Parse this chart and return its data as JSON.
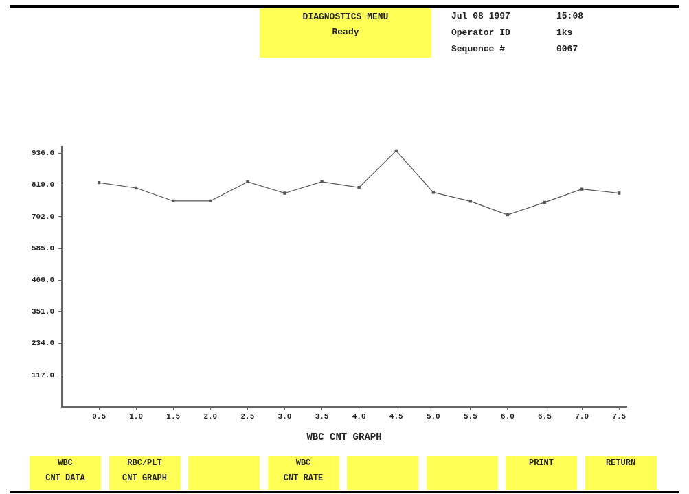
{
  "chart_data": {
    "type": "line",
    "title": "DIAGNOSTICS MENU",
    "subtitle": "Ready",
    "xlabel": "WBC CNT GRAPH",
    "annotations": [
      "Jul 08 1997",
      "15:08",
      "Operator ID",
      "1ks",
      "Sequence #",
      "0067",
      "WBC\nCNT DATA",
      "RBC/PLT\nCNT GRAPH",
      "WBC\nCNT RATE",
      "PRINT",
      "RETURN"
    ],
    "x": [
      0.5,
      1.0,
      1.5,
      2.0,
      2.5,
      3.0,
      3.5,
      4.0,
      4.5,
      5.0,
      5.5,
      6.0,
      6.5,
      7.0,
      7.5
    ],
    "series": [
      {
        "color": "#555555",
        "values": [
          828,
          808,
          760,
          760,
          831,
          789,
          831,
          810,
          945,
          792,
          759,
          709,
          755,
          804,
          789
        ]
      }
    ],
    "xlim": [
      0,
      7.6
    ],
    "xticks": [
      {
        "value": 0.5,
        "label": "0.5"
      },
      {
        "value": 1.0,
        "label": "1.0"
      },
      {
        "value": 1.5,
        "label": "1.5"
      },
      {
        "value": 2.0,
        "label": "2.0"
      },
      {
        "value": 2.5,
        "label": "2.5"
      },
      {
        "value": 3.0,
        "label": "3.0"
      },
      {
        "value": 3.5,
        "label": "3.5"
      },
      {
        "value": 4.0,
        "label": "4.0"
      },
      {
        "value": 4.5,
        "label": "4.5"
      },
      {
        "value": 5.0,
        "label": "5.0"
      },
      {
        "value": 5.5,
        "label": "5.5"
      },
      {
        "value": 6.0,
        "label": "6.0"
      },
      {
        "value": 6.5,
        "label": "6.5"
      },
      {
        "value": 7.0,
        "label": "7.0"
      },
      {
        "value": 7.5,
        "label": "7.5"
      }
    ],
    "ylim": [
      0,
      960
    ],
    "yticks": [
      {
        "value": 117,
        "label": "117.0"
      },
      {
        "value": 234,
        "label": "234.0"
      },
      {
        "value": 351,
        "label": "351.0"
      },
      {
        "value": 468,
        "label": "468.0"
      },
      {
        "value": 585,
        "label": "585.0"
      },
      {
        "value": 702,
        "label": "702.0"
      },
      {
        "value": 819,
        "label": "819.0"
      },
      {
        "value": 936,
        "label": "936.0"
      }
    ],
    "grid": false,
    "legend": false,
    "marker": "square",
    "line_style": "solid"
  }
}
